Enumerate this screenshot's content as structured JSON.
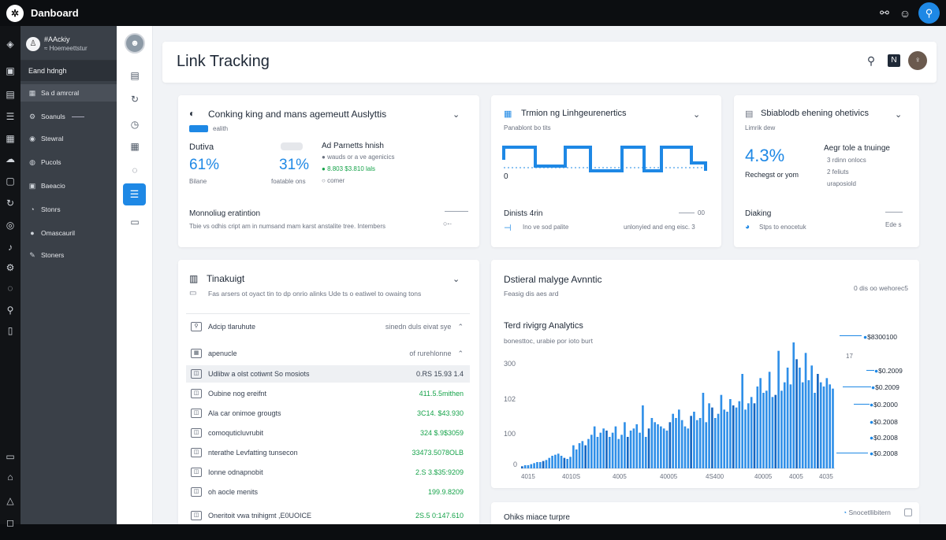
{
  "app": {
    "title": "Danboard"
  },
  "topbar": {
    "icons": [
      "link-icon",
      "user-icon",
      "search-icon"
    ]
  },
  "sidebar": {
    "user_name": "#AAckiy",
    "user_sub": "≈ Hoemeettstur",
    "header": "Eand hdngh",
    "items": [
      {
        "label": "Sa d amrcral",
        "icon": "grid-icon"
      },
      {
        "label": "Soanuls",
        "icon": "gear-icon"
      },
      {
        "label": "Stewral",
        "icon": "circle-icon"
      },
      {
        "label": "Pucols",
        "icon": "globe-icon"
      },
      {
        "label": "Baeacio",
        "icon": "box-icon"
      },
      {
        "label": "Stonrs",
        "icon": "clock-icon"
      },
      {
        "label": "Omascauril",
        "icon": "dot-icon"
      },
      {
        "label": "Stoners",
        "icon": "tag-icon"
      }
    ]
  },
  "header": {
    "title": "Link Tracking"
  },
  "card1": {
    "title": "Conking king and mans agemeutt Auslyttis",
    "tag": "ealith",
    "stat1_label": "Dutiva",
    "stat1_value": "61%",
    "stat1_sub": "Bilane",
    "stat2_value": "31%",
    "stat2_sub": "foatable ons",
    "list_title": "Ad Parnetts hnish",
    "list": [
      "wauds or a ve agenicics",
      "8.803 $3.810 lals",
      "comer"
    ],
    "foot_title": "Monnoliug eratintion",
    "foot_desc": "Tbie vs odhis cript am in numsand mam karst anstalite tree. Intembers"
  },
  "card2": {
    "title": "Trmion ng Linhgeurenertics",
    "subtitle": "Panablont bo tits",
    "axis_zero": "0",
    "foot_title": "Dinists 4rin",
    "foot_right": "00",
    "foot_desc": "Ino ve sod palite",
    "foot_desc2": "unlonyied and eng eisc. 3"
  },
  "card3": {
    "title": "Sbiablodb ehening ohetivics",
    "subtitle": "Limrik dew",
    "value": "4.3%",
    "sub": "Rechegst or yom",
    "list_title": "Aegr tole a tnuinge",
    "list": [
      "3 rdinn onlocs",
      "2 feliuts",
      "uraposiold"
    ],
    "foot_title": "Diaking",
    "foot_desc": "Stps to enocetuk",
    "foot_right": "Ede s"
  },
  "card4": {
    "title": "Tinakuigt",
    "desc": "Fas arsers ot oyact tin to dp onrio alinks Ude ts o eatiwel to owaing tons",
    "search_placeholder": "Adcip tlaruhute",
    "search_right": "sinedn duls eivat sye",
    "header_name": "apenucle",
    "header_value": "of rurehlonne",
    "rows": [
      {
        "name": "Udlibw a olst cotiwnt So mosiots",
        "value": "0.RS 15.93 1.4"
      },
      {
        "name": "Oubine nog ereifnt",
        "value": "411.5.5mithen"
      },
      {
        "name": "Ala car onimoe grougts",
        "value": "3C14. $43.930"
      },
      {
        "name": "comoquticluvrubit",
        "value": "324 $.9$3059"
      },
      {
        "name": "nterathe Levfatting tunsecon",
        "value": "33473.5078OLB"
      },
      {
        "name": "Ionne odnapnobit",
        "value": "2.S 3.$35:9209"
      },
      {
        "name": "oh aocle menits",
        "value": "199.9.8209"
      },
      {
        "name": "Oneritoit vwa tnihigmt ,E0UOICE",
        "value": "2S.5 0:147.610"
      }
    ]
  },
  "card5": {
    "title": "Dstieral malyge Avnntic",
    "desc": "Feasig dis aes ard",
    "top_right": "0 dis oo wehorec5",
    "chart_title": "Terd rivigrg Analytics",
    "chart_desc": "bonesttoc, urabie por ioto burt",
    "x_ticks": [
      "4015",
      "4010S",
      "4005",
      "40005",
      "4S400",
      "40005",
      "4005",
      "4035"
    ],
    "y_ticks": [
      "300",
      "102",
      "100",
      "0"
    ],
    "legend": [
      "$8300100",
      "$0.2009",
      "$0.2009",
      "$0.2000",
      "$0.2008",
      "$0.2008",
      "$0.2008"
    ],
    "legend_marker": "17",
    "chart_data": {
      "type": "bar",
      "values": [
        2,
        3,
        3,
        4,
        5,
        6,
        6,
        7,
        8,
        10,
        12,
        13,
        14,
        12,
        10,
        9,
        11,
        22,
        18,
        24,
        26,
        22,
        28,
        32,
        40,
        30,
        34,
        38,
        36,
        30,
        34,
        40,
        28,
        32,
        44,
        30,
        36,
        38,
        42,
        34,
        60,
        30,
        38,
        48,
        44,
        42,
        40,
        38,
        36,
        44,
        52,
        48,
        56,
        46,
        40,
        38,
        50,
        54,
        46,
        48,
        72,
        44,
        62,
        58,
        48,
        52,
        70,
        56,
        54,
        66,
        60,
        58,
        64,
        90,
        56,
        62,
        68,
        62,
        78,
        86,
        72,
        74,
        92,
        68,
        70,
        112,
        74,
        82,
        96,
        80,
        120,
        104,
        96,
        82,
        110,
        84,
        98,
        72,
        90,
        82,
        78,
        86,
        80,
        76
      ]
    }
  },
  "card6": {
    "title": "Ohiks miace turpre",
    "right": "Snocetllibitern"
  }
}
